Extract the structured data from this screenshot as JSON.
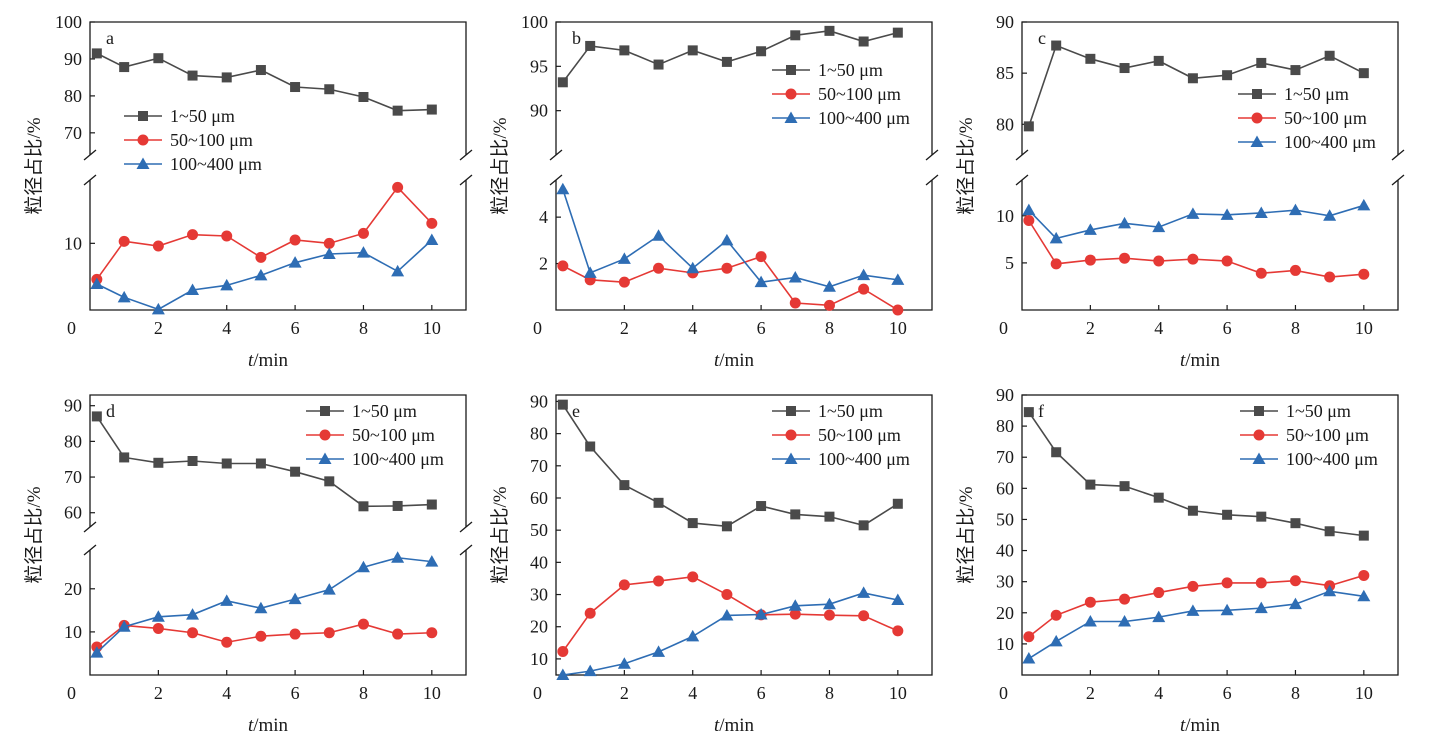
{
  "figure": {
    "series_style": [
      {
        "color": "#4a4a4a",
        "marker": "square"
      },
      {
        "color": "#e53935",
        "marker": "circle"
      },
      {
        "color": "#2e6db4",
        "marker": "triangle"
      }
    ]
  },
  "chart_data": [
    {
      "panel": "a",
      "type": "line",
      "xlabel": "t/min",
      "ylabel": "粒径占比/%",
      "xlim": [
        0,
        11
      ],
      "xticks": [
        "0",
        "2",
        "4",
        "6",
        "8",
        "10"
      ],
      "broken_y_axis": true,
      "y_upper_ticks": [
        "70",
        "80",
        "90",
        "100"
      ],
      "y_lower_ticks": [
        "0",
        "10"
      ],
      "x": [
        0.2,
        1,
        2,
        3,
        4,
        5,
        6,
        7,
        8,
        9,
        10
      ],
      "legend": "upper-left",
      "series": [
        {
          "name": "1~50 μm",
          "values": [
            91.5,
            87.8,
            90.2,
            85.5,
            85.0,
            87.0,
            82.4,
            81.8,
            79.7,
            76.0,
            76.3
          ]
        },
        {
          "name": "50~100 μm",
          "values": [
            4.6,
            10.3,
            9.6,
            11.3,
            11.1,
            7.9,
            10.5,
            10.0,
            11.5,
            18.4,
            13.0
          ]
        },
        {
          "name": "100~400 μm",
          "values": [
            3.9,
            1.9,
            0.1,
            3.0,
            3.7,
            5.2,
            7.1,
            8.4,
            8.6,
            5.8,
            10.5
          ]
        }
      ]
    },
    {
      "panel": "b",
      "type": "line",
      "xlabel": "t/min",
      "ylabel": "粒径占比/%",
      "xlim": [
        0,
        11
      ],
      "xticks": [
        "0",
        "2",
        "4",
        "6",
        "8",
        "10"
      ],
      "broken_y_axis": true,
      "y_upper_ticks": [
        "90",
        "95",
        "100"
      ],
      "y_lower_ticks": [
        "2",
        "4"
      ],
      "x": [
        0.2,
        1,
        2,
        3,
        4,
        5,
        6,
        7,
        8,
        9,
        10
      ],
      "legend": "right",
      "series": [
        {
          "name": "1~50 μm",
          "values": [
            93.2,
            97.3,
            96.8,
            95.2,
            96.8,
            95.5,
            96.7,
            98.5,
            99.0,
            97.8,
            98.8
          ]
        },
        {
          "name": "50~100 μm",
          "values": [
            1.9,
            1.3,
            1.2,
            1.8,
            1.6,
            1.8,
            2.3,
            0.3,
            0.2,
            0.9,
            0.0
          ]
        },
        {
          "name": "100~400 μm",
          "values": [
            5.2,
            1.6,
            2.2,
            3.2,
            1.8,
            3.0,
            1.2,
            1.4,
            1.0,
            1.5,
            1.3
          ]
        }
      ]
    },
    {
      "panel": "c",
      "type": "line",
      "xlabel": "t/min",
      "ylabel": "粒径占比/%",
      "xlim": [
        0,
        11
      ],
      "xticks": [
        "0",
        "2",
        "4",
        "6",
        "8",
        "10"
      ],
      "broken_y_axis": true,
      "y_upper_ticks": [
        "80",
        "85",
        "90"
      ],
      "y_lower_ticks": [
        "0",
        "5",
        "10"
      ],
      "x": [
        0.2,
        1,
        2,
        3,
        4,
        5,
        6,
        7,
        8,
        9,
        10
      ],
      "legend": "right",
      "series": [
        {
          "name": "1~50 μm",
          "values": [
            79.8,
            87.7,
            86.4,
            85.5,
            86.2,
            84.5,
            84.8,
            86.0,
            85.3,
            86.7,
            85.0
          ]
        },
        {
          "name": "50~100 μm",
          "values": [
            9.5,
            4.9,
            5.3,
            5.5,
            5.2,
            5.4,
            5.2,
            3.9,
            4.2,
            3.5,
            3.8
          ]
        },
        {
          "name": "100~400 μm",
          "values": [
            10.6,
            7.6,
            8.5,
            9.2,
            8.8,
            10.2,
            10.1,
            10.3,
            10.6,
            10.0,
            11.1
          ]
        }
      ]
    },
    {
      "panel": "d",
      "type": "line",
      "xlabel": "t/min",
      "ylabel": "粒径占比/%",
      "xlim": [
        0,
        11
      ],
      "xticks": [
        "0",
        "2",
        "4",
        "6",
        "8",
        "10"
      ],
      "broken_y_axis": true,
      "y_upper_ticks": [
        "60",
        "70",
        "80",
        "90"
      ],
      "y_lower_ticks": [
        "0",
        "10",
        "20"
      ],
      "x": [
        0.2,
        1,
        2,
        3,
        4,
        5,
        6,
        7,
        8,
        9,
        10
      ],
      "legend": "upper-right",
      "series": [
        {
          "name": "1~50 μm",
          "values": [
            87.0,
            75.5,
            74.0,
            74.5,
            73.8,
            73.8,
            71.5,
            68.8,
            61.8,
            61.9,
            62.3
          ]
        },
        {
          "name": "50~100 μm",
          "values": [
            6.5,
            11.5,
            10.8,
            9.8,
            7.6,
            9.0,
            9.5,
            9.8,
            11.8,
            9.5,
            9.8
          ]
        },
        {
          "name": "100~400 μm",
          "values": [
            5.2,
            11.2,
            13.5,
            14.0,
            17.2,
            15.5,
            17.6,
            19.8,
            25.0,
            27.2,
            26.3
          ]
        }
      ]
    },
    {
      "panel": "e",
      "type": "line",
      "xlabel": "t/min",
      "ylabel": "粒径占比/%",
      "xlim": [
        0,
        11
      ],
      "ylim": [
        5,
        92
      ],
      "xticks": [
        "0",
        "2",
        "4",
        "6",
        "8",
        "10"
      ],
      "yticks": [
        "10",
        "20",
        "30",
        "40",
        "50",
        "60",
        "70",
        "80",
        "90"
      ],
      "broken_y_axis": false,
      "x": [
        0.2,
        1,
        2,
        3,
        4,
        5,
        6,
        7,
        8,
        9,
        10
      ],
      "legend": "upper-right",
      "series": [
        {
          "name": "1~50 μm",
          "values": [
            89.0,
            76.0,
            64.0,
            58.5,
            52.2,
            51.2,
            57.5,
            54.9,
            54.2,
            51.5,
            58.2
          ]
        },
        {
          "name": "50~100 μm",
          "values": [
            12.3,
            24.2,
            33.0,
            34.2,
            35.5,
            30.0,
            23.7,
            23.9,
            23.6,
            23.4,
            18.7
          ]
        },
        {
          "name": "100~400 μm",
          "values": [
            5.0,
            6.2,
            8.5,
            12.2,
            17.0,
            23.5,
            23.8,
            26.5,
            27.0,
            30.5,
            28.3
          ]
        }
      ]
    },
    {
      "panel": "f",
      "type": "line",
      "xlabel": "t/min",
      "ylabel": "粒径占比/%",
      "xlim": [
        0,
        11
      ],
      "ylim": [
        0,
        90
      ],
      "xticks": [
        "0",
        "2",
        "4",
        "6",
        "8",
        "10"
      ],
      "yticks": [
        "10",
        "20",
        "30",
        "40",
        "50",
        "60",
        "70",
        "80",
        "90"
      ],
      "broken_y_axis": false,
      "x": [
        0.2,
        1,
        2,
        3,
        4,
        5,
        6,
        7,
        8,
        9,
        10
      ],
      "legend": "upper-right",
      "series": [
        {
          "name": "1~50 μm",
          "values": [
            84.5,
            71.6,
            61.2,
            60.7,
            57.0,
            52.8,
            51.5,
            50.9,
            48.8,
            46.2,
            44.8
          ]
        },
        {
          "name": "50~100 μm",
          "values": [
            12.3,
            19.2,
            23.4,
            24.4,
            26.5,
            28.5,
            29.6,
            29.6,
            30.3,
            28.7,
            32.0
          ]
        },
        {
          "name": "100~400 μm",
          "values": [
            5.3,
            10.8,
            17.2,
            17.2,
            18.6,
            20.6,
            20.8,
            21.5,
            22.8,
            26.9,
            25.3
          ]
        }
      ]
    }
  ]
}
